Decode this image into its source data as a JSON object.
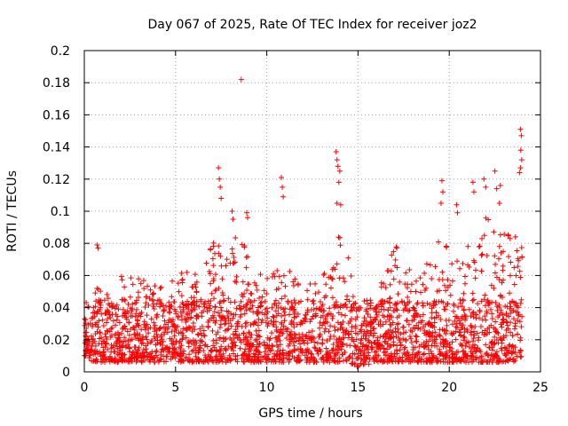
{
  "chart_data": {
    "type": "scatter",
    "title": "Day 067 of 2025, Rate Of TEC Index for receiver joz2",
    "xlabel": "GPS time / hours",
    "ylabel": "ROTI / TECUs",
    "xlim": [
      0,
      25
    ],
    "ylim": [
      0,
      0.2
    ],
    "x_ticks": [
      "0",
      "5",
      "10",
      "15",
      "20",
      "25"
    ],
    "y_ticks": [
      "0",
      "0.02",
      "0.04",
      "0.06",
      "0.08",
      "0.1",
      "0.12",
      "0.14",
      "0.16",
      "0.18",
      "0.2"
    ],
    "x_tick_values": [
      0,
      5,
      10,
      15,
      20,
      25
    ],
    "y_tick_values": [
      0,
      0.02,
      0.04,
      0.06,
      0.08,
      0.1,
      0.12,
      0.14,
      0.16,
      0.18,
      0.2
    ],
    "grid": true,
    "marker": "+",
    "series_color": "#ff0000",
    "envelope": {
      "x": [
        0,
        0.5,
        1,
        1.5,
        2,
        2.5,
        3,
        3.5,
        4,
        4.5,
        5,
        5.5,
        6,
        6.5,
        7,
        7.5,
        8,
        8.5,
        9,
        9.5,
        10,
        10.5,
        11,
        11.5,
        12,
        12.5,
        13,
        13.5,
        14,
        14.5,
        15,
        15.5,
        16,
        16.5,
        17,
        17.5,
        18,
        18.5,
        19,
        19.5,
        20,
        20.5,
        21,
        21.5,
        22,
        22.5,
        23,
        23.5,
        24
      ],
      "upper": [
        0.04,
        0.06,
        0.05,
        0.05,
        0.06,
        0.06,
        0.06,
        0.055,
        0.06,
        0.055,
        0.065,
        0.065,
        0.06,
        0.065,
        0.08,
        0.09,
        0.085,
        0.09,
        0.07,
        0.065,
        0.06,
        0.065,
        0.07,
        0.06,
        0.06,
        0.065,
        0.06,
        0.065,
        0.09,
        0.07,
        0.05,
        0.045,
        0.05,
        0.065,
        0.08,
        0.07,
        0.06,
        0.065,
        0.07,
        0.085,
        0.075,
        0.07,
        0.08,
        0.09,
        0.1,
        0.095,
        0.09,
        0.085,
        0.09
      ],
      "lower": [
        0.01,
        0.006,
        0.006,
        0.006,
        0.006,
        0.006,
        0.006,
        0.006,
        0.006,
        0.006,
        0.006,
        0.006,
        0.006,
        0.006,
        0.006,
        0.006,
        0.006,
        0.006,
        0.006,
        0.006,
        0.006,
        0.006,
        0.006,
        0.006,
        0.006,
        0.006,
        0.006,
        0.006,
        0.006,
        0.006,
        0.003,
        0.004,
        0.006,
        0.006,
        0.006,
        0.006,
        0.006,
        0.006,
        0.006,
        0.006,
        0.006,
        0.006,
        0.006,
        0.006,
        0.006,
        0.006,
        0.006,
        0.006,
        0.01
      ]
    },
    "notable_points": [
      {
        "x": 0.7,
        "y": 0.079
      },
      {
        "x": 0.75,
        "y": 0.077
      },
      {
        "x": 7.35,
        "y": 0.127
      },
      {
        "x": 7.4,
        "y": 0.12
      },
      {
        "x": 7.45,
        "y": 0.115
      },
      {
        "x": 7.5,
        "y": 0.108
      },
      {
        "x": 8.1,
        "y": 0.1
      },
      {
        "x": 8.15,
        "y": 0.095
      },
      {
        "x": 8.6,
        "y": 0.182
      },
      {
        "x": 8.9,
        "y": 0.099
      },
      {
        "x": 8.95,
        "y": 0.096
      },
      {
        "x": 10.8,
        "y": 0.121
      },
      {
        "x": 10.85,
        "y": 0.115
      },
      {
        "x": 10.9,
        "y": 0.109
      },
      {
        "x": 13.8,
        "y": 0.137
      },
      {
        "x": 13.85,
        "y": 0.132
      },
      {
        "x": 13.9,
        "y": 0.128
      },
      {
        "x": 14.0,
        "y": 0.125
      },
      {
        "x": 13.95,
        "y": 0.118
      },
      {
        "x": 13.85,
        "y": 0.105
      },
      {
        "x": 14.05,
        "y": 0.104
      },
      {
        "x": 19.6,
        "y": 0.119
      },
      {
        "x": 19.65,
        "y": 0.112
      },
      {
        "x": 19.55,
        "y": 0.105
      },
      {
        "x": 20.4,
        "y": 0.104
      },
      {
        "x": 20.45,
        "y": 0.099
      },
      {
        "x": 21.3,
        "y": 0.118
      },
      {
        "x": 21.35,
        "y": 0.112
      },
      {
        "x": 21.9,
        "y": 0.12
      },
      {
        "x": 22.0,
        "y": 0.115
      },
      {
        "x": 22.5,
        "y": 0.125
      },
      {
        "x": 22.6,
        "y": 0.114
      },
      {
        "x": 22.8,
        "y": 0.116
      },
      {
        "x": 22.75,
        "y": 0.105
      },
      {
        "x": 23.9,
        "y": 0.151
      },
      {
        "x": 23.95,
        "y": 0.147
      },
      {
        "x": 23.92,
        "y": 0.138
      },
      {
        "x": 23.97,
        "y": 0.132
      },
      {
        "x": 23.9,
        "y": 0.127
      },
      {
        "x": 23.85,
        "y": 0.124
      }
    ]
  }
}
